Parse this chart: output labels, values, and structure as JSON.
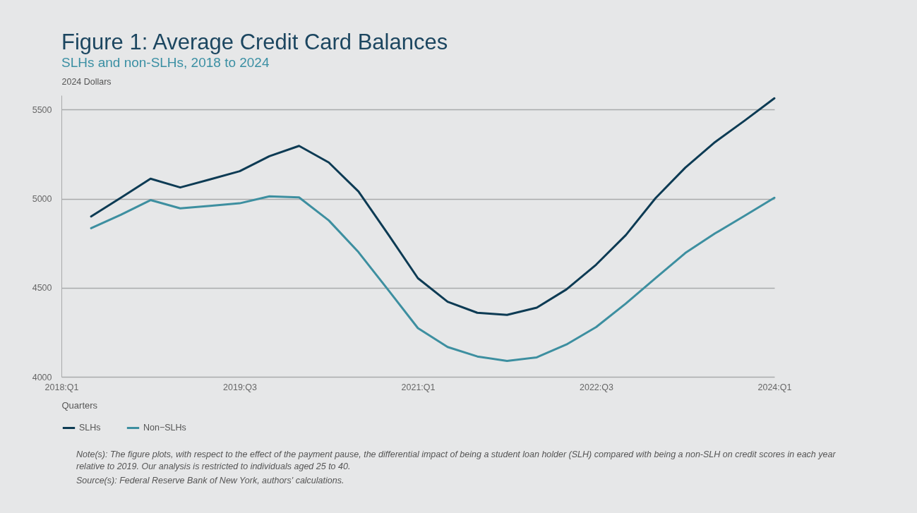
{
  "chart_data": {
    "type": "line",
    "title": "Figure 1: Average Credit Card Balances",
    "subtitle": "SLHs and non-SLHs, 2018 to 2024",
    "ylabel": "2024 Dollars",
    "xlabel": "Quarters",
    "categories": [
      "2018:Q1",
      null,
      null,
      null,
      null,
      null,
      "2019:Q3",
      null,
      null,
      null,
      null,
      null,
      "2021:Q1",
      null,
      null,
      null,
      null,
      null,
      "2022:Q3",
      null,
      null,
      null,
      null,
      null,
      "2024:Q1"
    ],
    "series": [
      {
        "name": "SLHs",
        "color": "#0d3b54",
        "values": [
          null,
          4900,
          5005,
          5112,
          5063,
          5108,
          5154,
          5238,
          5296,
          5203,
          5040,
          4800,
          4554,
          4422,
          4360,
          4348,
          4389,
          4491,
          4630,
          4796,
          5003,
          5174,
          5317,
          5438,
          5563
        ]
      },
      {
        "name": "Non−SLHs",
        "color": "#3d8fa0",
        "values": [
          null,
          4834,
          4910,
          4992,
          4946,
          4960,
          4974,
          5013,
          5007,
          4878,
          4700,
          4488,
          4274,
          4168,
          4115,
          4090,
          4110,
          4182,
          4280,
          4412,
          4554,
          4695,
          4805,
          4904,
          5005
        ]
      }
    ],
    "ylim": [
      4000,
      5580
    ],
    "yticks": [
      {
        "value": 4000,
        "label": "4000"
      },
      {
        "value": 4500,
        "label": "4500"
      },
      {
        "value": 5000,
        "label": "5000"
      },
      {
        "value": 5500,
        "label": "5500"
      }
    ],
    "grid": "y",
    "legend": "bottom left",
    "line_style": "solid",
    "marker": "none",
    "annotations": [
      "Note(s): The figure plots, with respect to the effect of the payment pause, the differential impact of being a student loan holder (SLH) compared with being a non-SLH on credit scores in each year relative to 2019. Our analysis is restricted to individuals aged 25 to 40.",
      "Source(s): Federal Reserve Bank of New York, authors' calculations."
    ]
  }
}
